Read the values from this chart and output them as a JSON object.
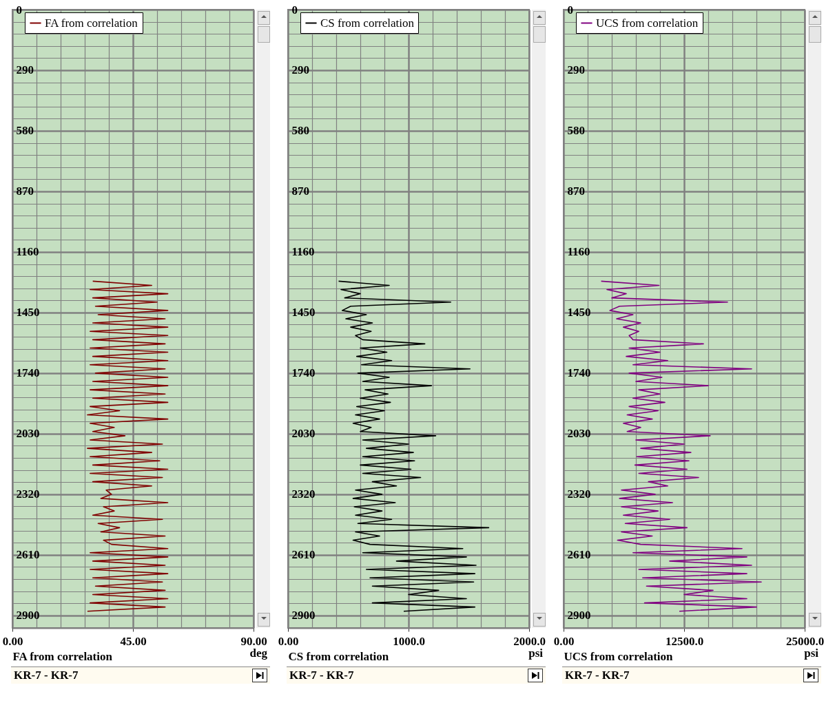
{
  "chart_data": [
    {
      "type": "line",
      "xlabel": "FA from correlation",
      "xlim": [
        0,
        90
      ],
      "xticks": [
        {
          "value": 0,
          "label": "0.00"
        },
        {
          "value": 45,
          "label": "45.00"
        },
        {
          "value": 90,
          "label": "90.00"
        }
      ],
      "ylim": [
        2960,
        0
      ],
      "yticks": [
        0,
        290,
        580,
        870,
        1160,
        1450,
        1740,
        2030,
        2320,
        2610,
        2900
      ],
      "grid": true,
      "legend": "top left",
      "annotations": [
        "deg",
        "KR-7 - KR-7"
      ],
      "series": [
        {
          "name": "FA from correlation",
          "color": "#800000",
          "x": [
            30,
            52,
            29,
            58,
            30,
            54,
            31,
            58,
            32,
            57,
            30,
            58,
            29,
            58,
            30,
            57,
            29,
            58,
            30,
            58,
            29,
            57,
            31,
            58,
            30,
            58,
            29,
            57,
            30,
            58,
            29,
            40,
            28,
            58,
            29,
            38,
            30,
            42,
            29,
            56,
            28,
            52,
            29,
            55,
            30,
            58,
            29,
            56,
            30,
            52,
            35,
            37,
            33,
            58,
            34,
            38,
            30,
            56,
            32,
            40,
            33,
            57,
            34,
            37,
            58,
            29,
            58,
            30,
            57,
            29,
            58,
            30,
            56,
            31,
            57,
            30,
            58,
            29,
            57,
            28
          ],
          "values": [
            1300,
            1320,
            1340,
            1360,
            1380,
            1400,
            1420,
            1440,
            1460,
            1480,
            1500,
            1520,
            1540,
            1560,
            1580,
            1600,
            1620,
            1640,
            1660,
            1680,
            1700,
            1720,
            1740,
            1760,
            1780,
            1800,
            1820,
            1840,
            1860,
            1880,
            1900,
            1920,
            1940,
            1960,
            1980,
            2000,
            2020,
            2040,
            2060,
            2080,
            2100,
            2120,
            2140,
            2160,
            2180,
            2200,
            2220,
            2240,
            2260,
            2280,
            2300,
            2320,
            2340,
            2360,
            2380,
            2400,
            2420,
            2440,
            2460,
            2480,
            2500,
            2520,
            2540,
            2560,
            2580,
            2600,
            2620,
            2640,
            2660,
            2680,
            2700,
            2720,
            2740,
            2760,
            2780,
            2800,
            2820,
            2840,
            2860,
            2880
          ]
        }
      ]
    },
    {
      "type": "line",
      "xlabel": "CS from correlation",
      "xlim": [
        0,
        2000
      ],
      "xticks": [
        {
          "value": 0,
          "label": "0.00"
        },
        {
          "value": 1000,
          "label": "1000.0"
        },
        {
          "value": 2000,
          "label": "2000.0"
        }
      ],
      "ylim": [
        2960,
        0
      ],
      "yticks": [
        0,
        290,
        580,
        870,
        1160,
        1450,
        1740,
        2030,
        2320,
        2610,
        2900
      ],
      "grid": true,
      "legend": "top left",
      "annotations": [
        "psi",
        "KR-7 - KR-7"
      ],
      "series": [
        {
          "name": "CS from correlation",
          "color": "#000000",
          "x": [
            420,
            840,
            440,
            600,
            470,
            1350,
            520,
            450,
            650,
            480,
            700,
            520,
            690,
            560,
            620,
            1135,
            600,
            820,
            570,
            860,
            610,
            1510,
            580,
            840,
            620,
            1190,
            640,
            830,
            600,
            850,
            570,
            800,
            560,
            760,
            540,
            690,
            600,
            1225,
            620,
            1000,
            650,
            1040,
            620,
            1050,
            600,
            1020,
            620,
            1100,
            700,
            900,
            560,
            780,
            540,
            890,
            550,
            780,
            560,
            860,
            580,
            1665,
            560,
            760,
            540,
            680,
            1450,
            620,
            1480,
            900,
            1560,
            650,
            1550,
            680,
            1540,
            700,
            1250,
            1000,
            1480,
            700,
            1550,
            960
          ],
          "values": [
            1300,
            1320,
            1340,
            1360,
            1380,
            1400,
            1420,
            1440,
            1460,
            1480,
            1500,
            1520,
            1540,
            1560,
            1580,
            1600,
            1620,
            1640,
            1660,
            1680,
            1700,
            1720,
            1740,
            1760,
            1780,
            1800,
            1820,
            1840,
            1860,
            1880,
            1900,
            1920,
            1940,
            1960,
            1980,
            2000,
            2020,
            2040,
            2060,
            2080,
            2100,
            2120,
            2140,
            2160,
            2180,
            2200,
            2220,
            2240,
            2260,
            2280,
            2300,
            2320,
            2340,
            2360,
            2380,
            2400,
            2420,
            2440,
            2460,
            2480,
            2500,
            2520,
            2540,
            2560,
            2580,
            2600,
            2620,
            2640,
            2660,
            2680,
            2700,
            2720,
            2740,
            2760,
            2780,
            2800,
            2820,
            2840,
            2860,
            2880
          ]
        }
      ]
    },
    {
      "type": "line",
      "xlabel": "UCS from correlation",
      "xlim": [
        0,
        25000
      ],
      "xticks": [
        {
          "value": 0,
          "label": "0.00"
        },
        {
          "value": 12500,
          "label": "12500.0"
        },
        {
          "value": 25000,
          "label": "25000.0"
        }
      ],
      "ylim": [
        2960,
        0
      ],
      "yticks": [
        0,
        290,
        580,
        870,
        1160,
        1450,
        1740,
        2030,
        2320,
        2610,
        2900
      ],
      "grid": true,
      "legend": "top left",
      "annotations": [
        "psi",
        "KR-7 - KR-7"
      ],
      "series": [
        {
          "name": "UCS from correlation",
          "color": "#800080",
          "x": [
            3900,
            9900,
            4500,
            6500,
            5000,
            17000,
            5800,
            4800,
            7200,
            5500,
            8000,
            6200,
            7800,
            6800,
            7200,
            14500,
            6800,
            10000,
            6500,
            10800,
            7200,
            19500,
            6800,
            10200,
            7500,
            15000,
            7800,
            10000,
            7200,
            10500,
            6800,
            9800,
            6600,
            9200,
            6200,
            8000,
            6600,
            15200,
            7500,
            12500,
            8000,
            13200,
            7600,
            13000,
            7400,
            12800,
            7800,
            14000,
            8800,
            10800,
            6000,
            9500,
            5800,
            11300,
            6000,
            9800,
            6200,
            11000,
            6400,
            12800,
            6000,
            9200,
            5600,
            8000,
            18500,
            7200,
            19000,
            11000,
            19500,
            7800,
            19000,
            8200,
            20500,
            8600,
            15500,
            12500,
            19000,
            8400,
            20000,
            12000
          ],
          "values": [
            1300,
            1320,
            1340,
            1360,
            1380,
            1400,
            1420,
            1440,
            1460,
            1480,
            1500,
            1520,
            1540,
            1560,
            1580,
            1600,
            1620,
            1640,
            1660,
            1680,
            1700,
            1720,
            1740,
            1760,
            1780,
            1800,
            1820,
            1840,
            1860,
            1880,
            1900,
            1920,
            1940,
            1960,
            1980,
            2000,
            2020,
            2040,
            2060,
            2080,
            2100,
            2120,
            2140,
            2160,
            2180,
            2200,
            2220,
            2240,
            2260,
            2280,
            2300,
            2320,
            2340,
            2360,
            2380,
            2400,
            2420,
            2440,
            2460,
            2480,
            2500,
            2520,
            2540,
            2560,
            2580,
            2600,
            2620,
            2640,
            2660,
            2680,
            2700,
            2720,
            2740,
            2760,
            2780,
            2800,
            2820,
            2840,
            2860,
            2880
          ]
        }
      ]
    }
  ]
}
